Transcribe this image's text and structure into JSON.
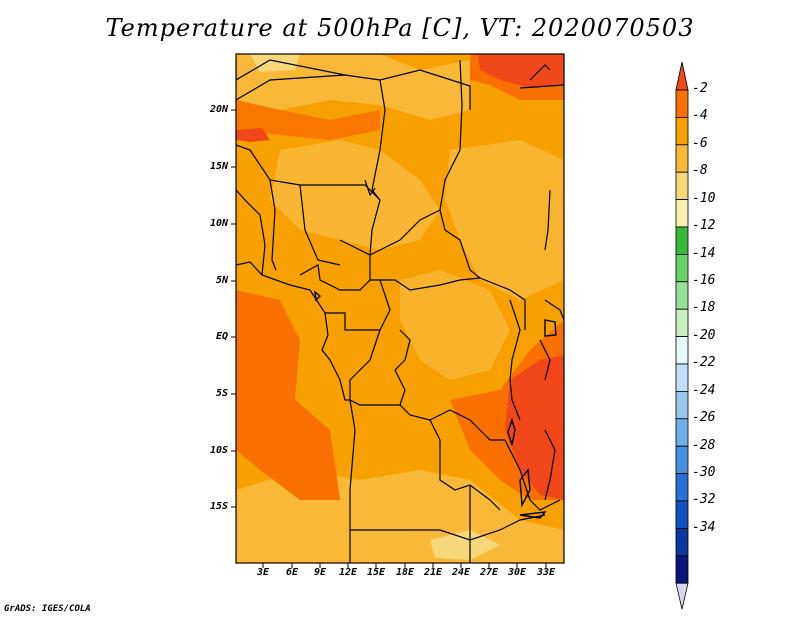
{
  "title": "Temperature at 500hPa [C], VT: 2020070503",
  "credit": "GrADS: IGES/COLA",
  "lat_labels": [
    "20N",
    "15N",
    "10N",
    "5N",
    "EQ",
    "5S",
    "10S",
    "15S"
  ],
  "lon_labels": [
    "3E",
    "6E",
    "9E",
    "12E",
    "15E",
    "18E",
    "21E",
    "24E",
    "27E",
    "30E",
    "33E"
  ],
  "colorbar": {
    "labels": [
      "-2",
      "-4",
      "-6",
      "-8",
      "-10",
      "-12",
      "-14",
      "-16",
      "-18",
      "-20",
      "-22",
      "-24",
      "-26",
      "-28",
      "-30",
      "-32",
      "-34"
    ],
    "colors": [
      "#f04818",
      "#f87000",
      "#f8a000",
      "#f8b838",
      "#f8d878",
      "#f8f0b0",
      "#38b838",
      "#68d068",
      "#98e098",
      "#c8f0c0",
      "#e8f8f8",
      "#c0e0f8",
      "#98c8f0",
      "#70b0e8",
      "#4890e0",
      "#2870d8",
      "#1050c0",
      "#0838a0",
      "#081878",
      "#d8d8f0"
    ]
  },
  "colors": {
    "ocean_warm": "#f87000",
    "land": "#f8a000",
    "cool": "#f8b838",
    "coolest": "#f8d878",
    "warm": "#f04818",
    "border": "#000000"
  }
}
